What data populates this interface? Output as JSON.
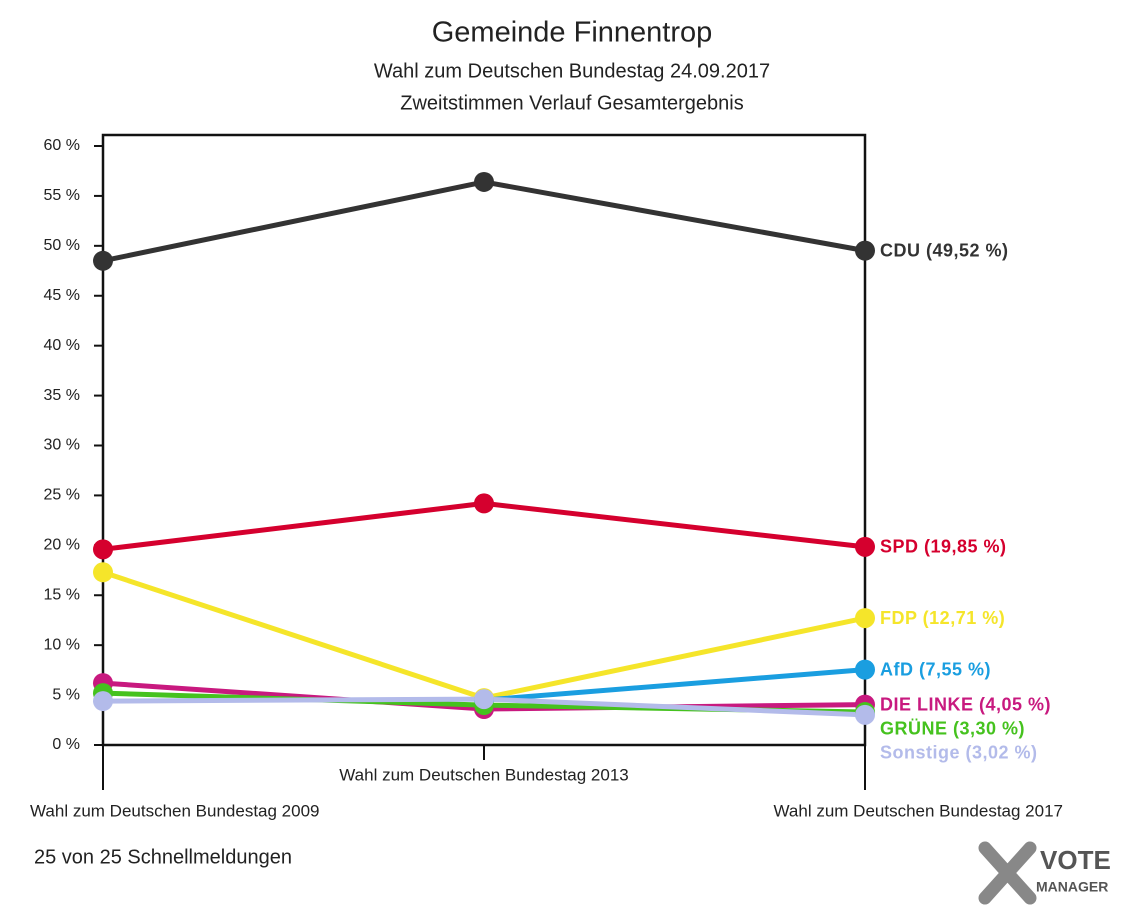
{
  "chart_data": {
    "type": "line",
    "title": "Gemeinde Finnentrop",
    "subtitle": [
      "Wahl zum Deutschen Bundestag 24.09.2017",
      "Zweitstimmen Verlauf Gesamtergebnis"
    ],
    "categories": [
      "Wahl zum Deutschen Bundestag 2009",
      "Wahl zum Deutschen Bundestag 2013",
      "Wahl zum Deutschen Bundestag 2017"
    ],
    "ylim": [
      0,
      60
    ],
    "yticks": [
      {
        "value": 0,
        "label": "0 %"
      },
      {
        "value": 5,
        "label": "5 %"
      },
      {
        "value": 10,
        "label": "10 %"
      },
      {
        "value": 15,
        "label": "15 %"
      },
      {
        "value": 20,
        "label": "20 %"
      },
      {
        "value": 25,
        "label": "25 %"
      },
      {
        "value": 30,
        "label": "30 %"
      },
      {
        "value": 35,
        "label": "35 %"
      },
      {
        "value": 40,
        "label": "40 %"
      },
      {
        "value": 45,
        "label": "45 %"
      },
      {
        "value": 50,
        "label": "50 %"
      },
      {
        "value": 55,
        "label": "55 %"
      },
      {
        "value": 60,
        "label": "60 %"
      }
    ],
    "series": [
      {
        "name": "CDU (49,52 %)",
        "color": "#333333",
        "values": [
          48.5,
          56.4,
          49.52
        ]
      },
      {
        "name": "SPD (19,85 %)",
        "color": "#d5002e",
        "values": [
          19.6,
          24.2,
          19.85
        ]
      },
      {
        "name": "FDP (12,71 %)",
        "color": "#f5e52a",
        "values": [
          17.3,
          4.7,
          12.71
        ]
      },
      {
        "name": "AfD (7,55 %)",
        "color": "#1a9ee0",
        "values": [
          null,
          4.5,
          7.55
        ]
      },
      {
        "name": "DIE LINKE (4,05 %)",
        "color": "#c8197f",
        "values": [
          6.2,
          3.6,
          4.05
        ]
      },
      {
        "name": "GRÜNE (3,30 %)",
        "color": "#45c21e",
        "values": [
          5.2,
          4.0,
          3.3
        ]
      },
      {
        "name": "Sonstige (3,02 %)",
        "color": "#b3bbea",
        "values": [
          4.4,
          4.6,
          3.02
        ]
      }
    ]
  },
  "footer": "25 von 25 Schnellmeldungen",
  "logo": {
    "line1": "VOTE",
    "line2": "MANAGER"
  }
}
